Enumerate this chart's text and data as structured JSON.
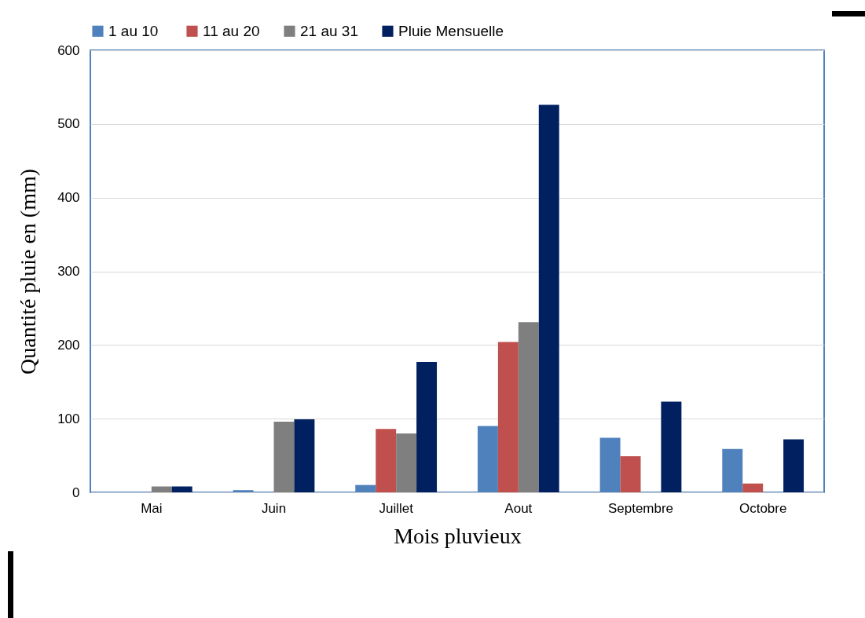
{
  "chart_data": {
    "type": "bar",
    "xlabel": "Mois pluvieux",
    "ylabel": "Quantité pluie en (mm)",
    "categories": [
      "Mai",
      "Juin",
      "Juillet",
      "Aout",
      "Septembre",
      "Octobre"
    ],
    "series": [
      {
        "name": "1  au 10",
        "color": "#4f81bd",
        "values": [
          0,
          3,
          10,
          90,
          74,
          59
        ]
      },
      {
        "name": "11 au 20",
        "color": "#c0504d",
        "values": [
          0,
          0,
          86,
          204,
          49,
          12
        ]
      },
      {
        "name": "21 au 31",
        "color": "#7f7f7f",
        "values": [
          8,
          96,
          80,
          231,
          0,
          0
        ]
      },
      {
        "name": "Pluie Mensuelle",
        "color": "#002060",
        "values": [
          8,
          99,
          177,
          526,
          123,
          72
        ]
      }
    ],
    "ylim": [
      0,
      600
    ],
    "yticks": [
      0,
      100,
      200,
      300,
      400,
      500,
      600
    ],
    "grid": "y",
    "legend": "top"
  }
}
